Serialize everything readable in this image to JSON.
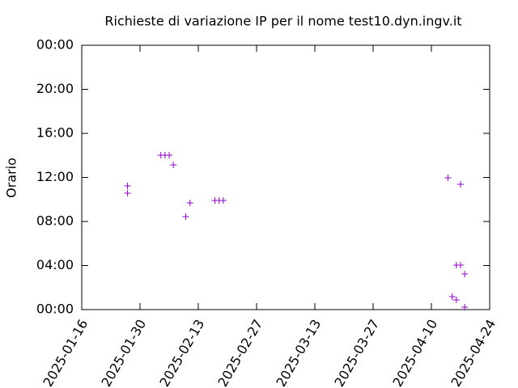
{
  "chart_data": {
    "type": "scatter",
    "title": "Richieste di variazione IP per il nome test10.dyn.ingv.it",
    "y_label": "Orario",
    "color": "#9400d3",
    "x": [
      "2025-01-27",
      "2025-01-27",
      "2025-02-04",
      "2025-02-05",
      "2025-02-06",
      "2025-02-07",
      "2025-02-10",
      "2025-02-11",
      "2025-02-17",
      "2025-02-18",
      "2025-02-19",
      "2025-04-14",
      "2025-04-17",
      "2025-04-16",
      "2025-04-17",
      "2025-04-18",
      "2025-04-15",
      "2025-04-16",
      "2025-04-18"
    ],
    "values": [
      11.23,
      10.57,
      14.02,
      14.02,
      14.02,
      13.14,
      8.44,
      9.69,
      9.91,
      9.91,
      9.91,
      11.96,
      11.38,
      4.04,
      4.04,
      3.23,
      1.17,
      0.88,
      0.22
    ],
    "xlim": [
      "2025-01-16",
      "2025-04-24"
    ],
    "xticks": [
      "2025-01-16",
      "2025-01-30",
      "2025-02-13",
      "2025-02-27",
      "2025-03-13",
      "2025-03-27",
      "2025-04-10",
      "2025-04-24"
    ],
    "ylim": [
      0,
      24
    ],
    "yticks": [
      {
        "value": 0,
        "label": "00:00"
      },
      {
        "value": 4,
        "label": "04:00"
      },
      {
        "value": 8,
        "label": "08:00"
      },
      {
        "value": 12,
        "label": "12:00"
      },
      {
        "value": 16,
        "label": "16:00"
      },
      {
        "value": 20,
        "label": "20:00"
      },
      {
        "value": 24,
        "label": "00:00"
      }
    ]
  }
}
